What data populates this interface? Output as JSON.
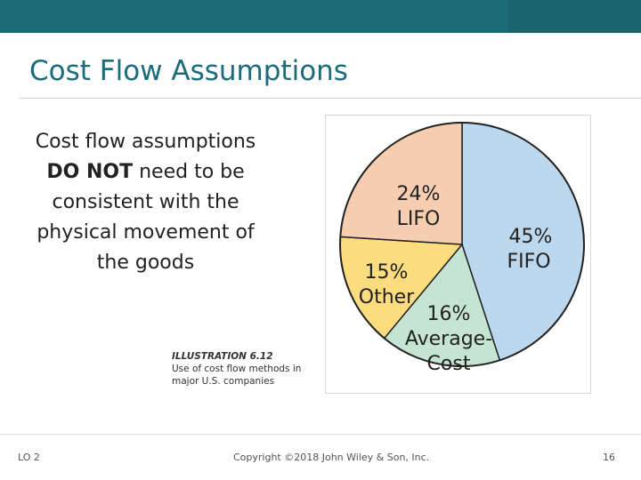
{
  "slide": {
    "title": "Cost Flow Assumptions",
    "body_bold_prefix": "",
    "body_line1": "Cost flow assumptions",
    "body_bold": "DO NOT",
    "body_rest": "need to be consistent with the physical movement of the goods",
    "illustration_title": "ILLUSTRATION 6.12",
    "illustration_caption_line1": "Use of cost flow methods in",
    "illustration_caption_line2": "major U.S. companies"
  },
  "footer": {
    "lo": "LO 2",
    "copyright": "Copyright ©2018 John Wiley & Son, Inc.",
    "page": "16"
  },
  "colors": {
    "header_bar": "#1c6b78",
    "title": "#1b6b7a",
    "fifo": "#bcd8ef",
    "average_cost": "#c6e4d2",
    "other": "#fbdc7e",
    "lifo": "#f6cdb0"
  },
  "chart_data": {
    "type": "pie",
    "title": "",
    "slices": [
      {
        "label": "FIFO",
        "value": 45,
        "percent_text": "45%",
        "name_text": "FIFO",
        "color": "#bcd8ef"
      },
      {
        "label": "Average-Cost",
        "value": 16,
        "percent_text": "16%",
        "name_text": "Average-",
        "name_text2": "Cost",
        "color": "#c6e4d2"
      },
      {
        "label": "Other",
        "value": 15,
        "percent_text": "15%",
        "name_text": "Other",
        "color": "#fbdc7e"
      },
      {
        "label": "LIFO",
        "value": 24,
        "percent_text": "24%",
        "name_text": "LIFO",
        "color": "#f6cdb0"
      }
    ]
  }
}
